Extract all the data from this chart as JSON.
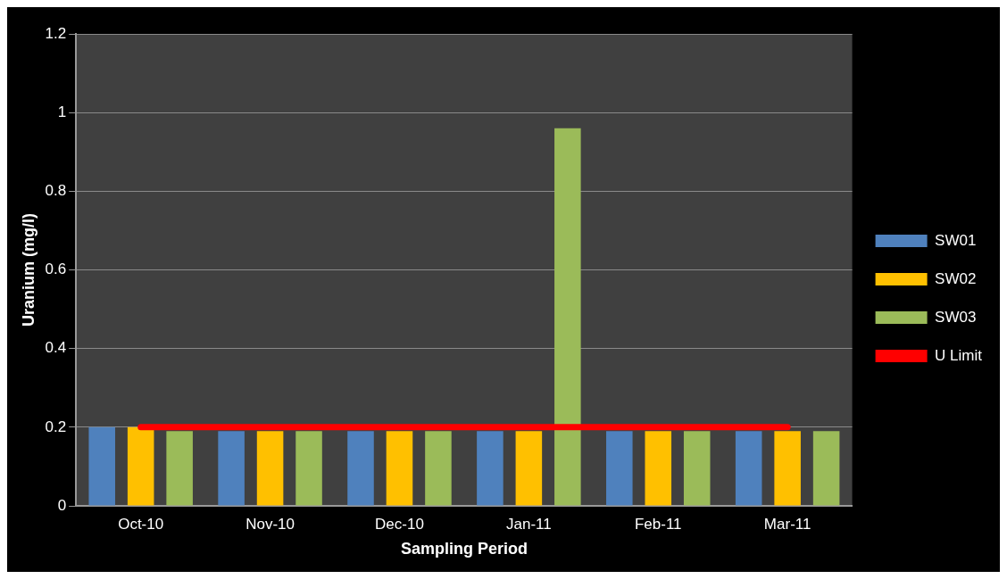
{
  "chart_data": {
    "type": "bar",
    "xlabel": "Sampling Period",
    "ylabel": "Uranium (mg/l)",
    "categories": [
      "Oct-10",
      "Nov-10",
      "Dec-10",
      "Jan-11",
      "Feb-11",
      "Mar-11"
    ],
    "series": [
      {
        "name": "SW01",
        "color": "#4f81bd",
        "values": [
          0.2,
          0.19,
          0.19,
          0.19,
          0.19,
          0.19
        ]
      },
      {
        "name": "SW02",
        "color": "#ffc000",
        "values": [
          0.2,
          0.19,
          0.19,
          0.19,
          0.19,
          0.19
        ]
      },
      {
        "name": "SW03",
        "color": "#9bbb59",
        "values": [
          0.19,
          0.19,
          0.19,
          0.96,
          0.19,
          0.19
        ]
      },
      {
        "name": "U Limit",
        "type": "line",
        "color": "#ff0000",
        "marker": "none",
        "values": [
          0.2,
          0.2,
          0.2,
          0.2,
          0.2,
          0.2
        ]
      }
    ],
    "ylim": [
      0,
      1.2
    ],
    "yticks": [
      0,
      0.2,
      0.4,
      0.6,
      0.8,
      1,
      1.2
    ],
    "grid": "y",
    "legend": "right"
  }
}
